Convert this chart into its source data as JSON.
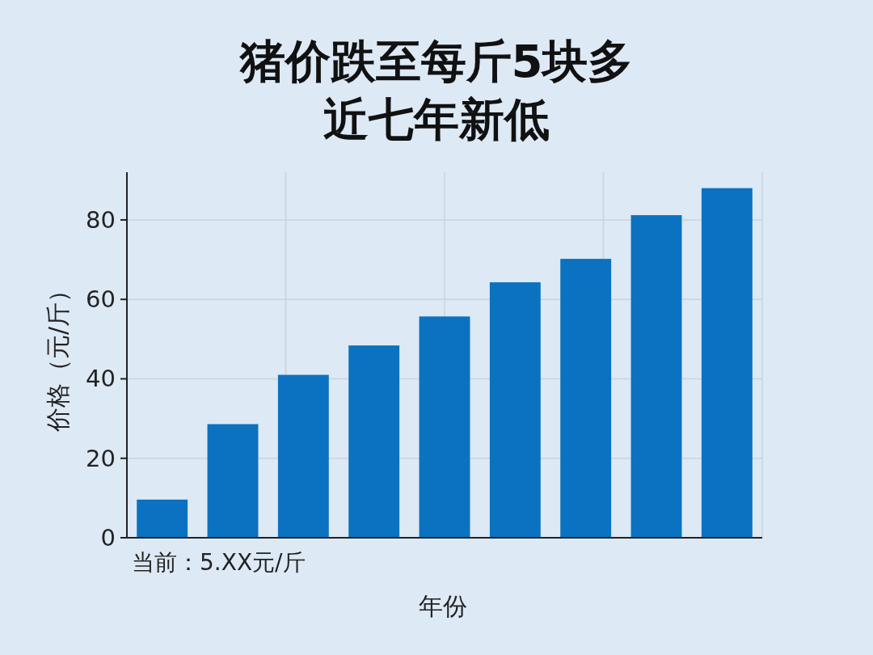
{
  "chart_data": {
    "type": "bar",
    "title": "猪价跌至每斤5块多",
    "subtitle": "近七年新低",
    "xlabel": "年份",
    "ylabel": "价格（元/斤）",
    "annotations": [
      "当前：5.XX元/斤"
    ],
    "categories": [
      null,
      null,
      null,
      null,
      null,
      null,
      null,
      null,
      null
    ],
    "values": [
      9.6,
      28.6,
      41,
      48.4,
      55.7,
      64.3,
      70.2,
      81.2,
      88
    ],
    "color": "#0a72c0",
    "ylim": [
      0,
      92
    ],
    "yticks": [
      0,
      20,
      40,
      60,
      80
    ],
    "grid": true
  }
}
